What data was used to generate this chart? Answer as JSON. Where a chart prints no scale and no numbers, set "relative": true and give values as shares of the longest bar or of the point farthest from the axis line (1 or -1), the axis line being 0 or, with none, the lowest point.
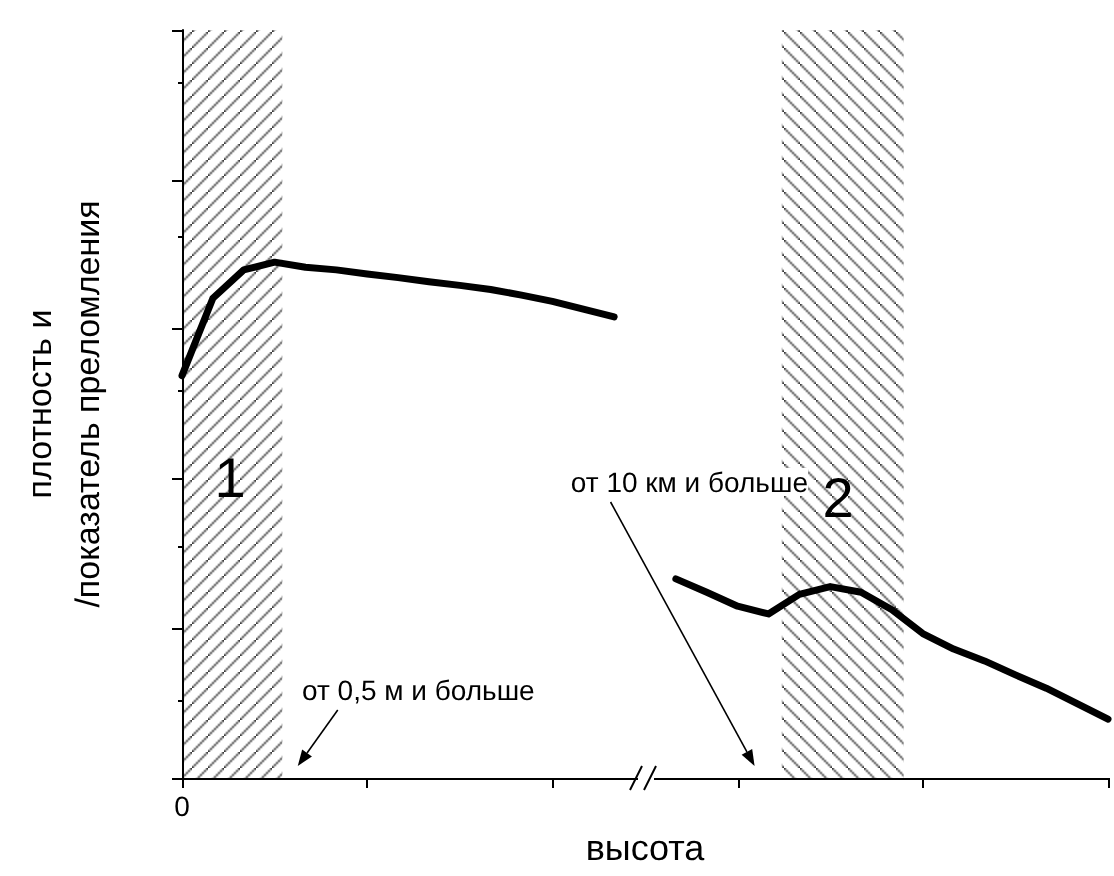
{
  "chart_data": {
    "type": "line",
    "relative": true,
    "xlabel": "высота",
    "ylabel": "плотность и\n/показатель преломления",
    "categories": [
      null,
      null,
      null,
      null,
      null,
      null,
      null,
      null,
      null,
      null,
      null,
      null,
      null,
      null,
      null,
      null,
      null,
      null,
      null,
      null,
      null,
      null,
      null,
      null,
      null,
      null,
      null,
      null,
      null,
      null,
      null
    ],
    "series": [
      {
        "color": "#000000",
        "values": [
          0.78,
          0.93,
          0.985,
          1.0,
          0.99,
          0.985,
          0.977,
          0.97,
          0.962,
          0.955,
          0.947,
          0.936,
          0.924,
          0.909,
          0.894,
          null,
          0.386,
          0.36,
          0.333,
          0.318,
          0.356,
          0.371,
          0.36,
          0.326,
          0.28,
          0.25,
          0.227,
          0.2,
          0.174,
          0.144,
          0.114
        ]
      }
    ],
    "annotations": [
      "0",
      "1",
      "2",
      "от 0,5 м и больше",
      "от 10 км и больше"
    ],
    "marker": "none",
    "line_style": "solid",
    "grid": false
  }
}
